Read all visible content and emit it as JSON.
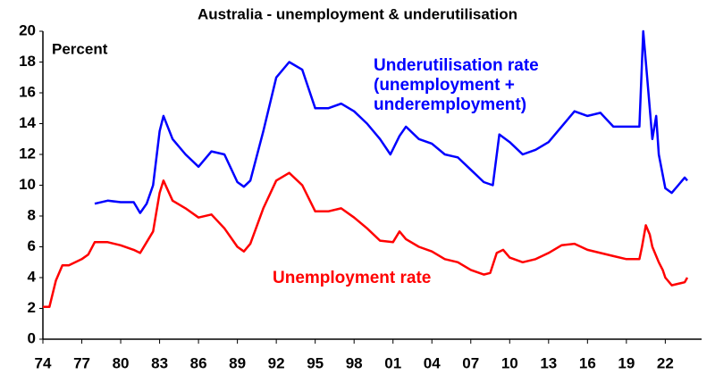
{
  "chart_data": {
    "type": "line",
    "title": "Australia - unemployment & underutilisation",
    "y_label": "Percent",
    "xlim": [
      1974,
      2024.8
    ],
    "ylim": [
      0,
      20
    ],
    "yticks": [
      0,
      2,
      4,
      6,
      8,
      10,
      12,
      14,
      16,
      18,
      20
    ],
    "xticks": [
      {
        "value": 1974,
        "label": "74"
      },
      {
        "value": 1977,
        "label": "77"
      },
      {
        "value": 1980,
        "label": "80"
      },
      {
        "value": 1983,
        "label": "83"
      },
      {
        "value": 1986,
        "label": "86"
      },
      {
        "value": 1989,
        "label": "89"
      },
      {
        "value": 1992,
        "label": "92"
      },
      {
        "value": 1995,
        "label": "95"
      },
      {
        "value": 1998,
        "label": "98"
      },
      {
        "value": 2001,
        "label": "01"
      },
      {
        "value": 2004,
        "label": "04"
      },
      {
        "value": 2007,
        "label": "07"
      },
      {
        "value": 2010,
        "label": "10"
      },
      {
        "value": 2013,
        "label": "13"
      },
      {
        "value": 2016,
        "label": "16"
      },
      {
        "value": 2019,
        "label": "19"
      },
      {
        "value": 2022,
        "label": "22"
      }
    ],
    "grid": false,
    "series": [
      {
        "name": "Underutilisation rate (unemployment + underemployment)",
        "color": "#0000ff",
        "x": [
          1978,
          1979,
          1980,
          1981,
          1981.5,
          1982,
          1982.5,
          1983,
          1983.3,
          1984,
          1985,
          1986,
          1987,
          1988,
          1989,
          1989.5,
          1990,
          1991,
          1992,
          1993,
          1994,
          1995,
          1996,
          1997,
          1998,
          1999,
          2000,
          2000.8,
          2001.5,
          2002,
          2003,
          2004,
          2005,
          2006,
          2007,
          2008,
          2008.7,
          2009.2,
          2010,
          2011,
          2012,
          2013,
          2014,
          2015,
          2016,
          2017,
          2018,
          2019,
          2020,
          2020.3,
          2020.6,
          2021,
          2021.3,
          2021.5,
          2022,
          2022.5,
          2023,
          2023.5,
          2023.7
        ],
        "values": [
          8.8,
          9.0,
          8.9,
          8.9,
          8.2,
          8.8,
          10.0,
          13.5,
          14.5,
          13.0,
          12.0,
          11.2,
          12.2,
          12.0,
          10.2,
          9.9,
          10.3,
          13.5,
          17.0,
          18.0,
          17.5,
          15.0,
          15.0,
          15.3,
          14.8,
          14.0,
          13.0,
          12.0,
          13.2,
          13.8,
          13.0,
          12.7,
          12.0,
          11.8,
          11.0,
          10.2,
          10.0,
          13.3,
          12.8,
          12.0,
          12.3,
          12.8,
          13.8,
          14.8,
          14.5,
          14.7,
          13.8,
          13.8,
          13.8,
          20.0,
          17.0,
          13.0,
          14.5,
          12.0,
          9.8,
          9.5,
          10.0,
          10.5,
          10.3
        ]
      },
      {
        "name": "Unemployment rate",
        "color": "#ff0000",
        "x": [
          1974,
          1974.5,
          1975,
          1975.5,
          1976,
          1976.5,
          1977,
          1977.5,
          1978,
          1978.5,
          1979,
          1980,
          1981,
          1981.5,
          1982,
          1982.5,
          1983,
          1983.3,
          1984,
          1985,
          1986,
          1987,
          1988,
          1989,
          1989.5,
          1990,
          1991,
          1992,
          1993,
          1994,
          1995,
          1996,
          1997,
          1998,
          1999,
          2000,
          2001,
          2001.5,
          2002,
          2003,
          2004,
          2005,
          2006,
          2007,
          2008,
          2008.5,
          2009,
          2009.5,
          2010,
          2011,
          2012,
          2013,
          2014,
          2015,
          2016,
          2017,
          2018,
          2019,
          2020,
          2020.2,
          2020.5,
          2020.8,
          2021,
          2021.5,
          2021.8,
          2022,
          2022.5,
          2023,
          2023.5,
          2023.7
        ],
        "values": [
          2.1,
          2.1,
          3.8,
          4.8,
          4.8,
          5.0,
          5.2,
          5.5,
          6.3,
          6.3,
          6.3,
          6.1,
          5.8,
          5.6,
          6.3,
          7.0,
          9.5,
          10.3,
          9.0,
          8.5,
          7.9,
          8.1,
          7.2,
          6.0,
          5.7,
          6.2,
          8.5,
          10.3,
          10.8,
          10.0,
          8.3,
          8.3,
          8.5,
          7.9,
          7.2,
          6.4,
          6.3,
          7.0,
          6.5,
          6.0,
          5.7,
          5.2,
          5.0,
          4.5,
          4.2,
          4.3,
          5.6,
          5.8,
          5.3,
          5.0,
          5.2,
          5.6,
          6.1,
          6.2,
          5.8,
          5.6,
          5.4,
          5.2,
          5.2,
          6.0,
          7.4,
          6.8,
          6.0,
          5.0,
          4.5,
          4.0,
          3.5,
          3.6,
          3.7,
          4.0
        ]
      }
    ]
  }
}
